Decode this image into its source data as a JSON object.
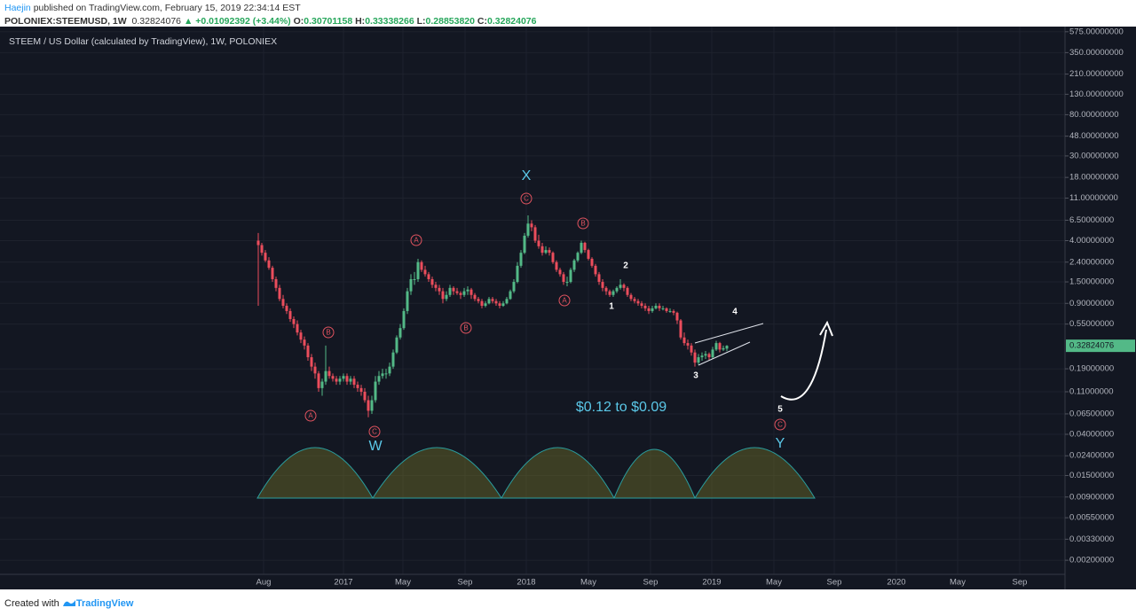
{
  "header": {
    "author": "Haejin",
    "published": "published on TradingView.com, February 15, 2019 22:34:14 EST",
    "symbol": "POLONIEX:STEEMUSD, 1W",
    "price": "0.32824076",
    "change": "▲ +0.01092392 (+3.44%)",
    "ohlc": [
      {
        "key": "O:",
        "val": "0.30701158"
      },
      {
        "key": "H:",
        "val": "0.33338266"
      },
      {
        "key": "L:",
        "val": "0.28853820"
      },
      {
        "key": "C:",
        "val": "0.32824076"
      }
    ]
  },
  "footer": {
    "created": "Created with",
    "brand": "TradingView"
  },
  "chart_data": {
    "type": "candlestick",
    "title": "STEEM / US Dollar (calculated by TradingView), 1W, POLONIEX",
    "up_color": "#53b987",
    "down_color": "#eb4d5c",
    "log_scale": true,
    "grid": true,
    "ylim": [
      0.001,
      650
    ],
    "xlim": [
      -72.75,
      227.25
    ],
    "yticks": [
      {
        "value": 575,
        "label": "575.00000000"
      },
      {
        "value": 350,
        "label": "350.00000000"
      },
      {
        "value": 210,
        "label": "210.00000000"
      },
      {
        "value": 130,
        "label": "130.00000000"
      },
      {
        "value": 80,
        "label": "80.00000000"
      },
      {
        "value": 48,
        "label": "48.00000000"
      },
      {
        "value": 30,
        "label": "30.00000000"
      },
      {
        "value": 18,
        "label": "18.00000000"
      },
      {
        "value": 11,
        "label": "11.00000000"
      },
      {
        "value": 6.5,
        "label": "6.50000000"
      },
      {
        "value": 4,
        "label": "4.00000000"
      },
      {
        "value": 2.4,
        "label": "2.40000000"
      },
      {
        "value": 1.5,
        "label": "1.50000000"
      },
      {
        "value": 0.9,
        "label": "0.90000000"
      },
      {
        "value": 0.55,
        "label": "0.55000000"
      },
      {
        "value": 0.19,
        "label": "0.19000000"
      },
      {
        "value": 0.11,
        "label": "0.11000000"
      },
      {
        "value": 0.065,
        "label": "0.06500000"
      },
      {
        "value": 0.04,
        "label": "0.04000000"
      },
      {
        "value": 0.024,
        "label": "0.02400000"
      },
      {
        "value": 0.015,
        "label": "0.01500000"
      },
      {
        "value": 0.009,
        "label": "0.00900000"
      },
      {
        "value": 0.0055,
        "label": "0.00550000"
      },
      {
        "value": 0.0033,
        "label": "0.00330000"
      },
      {
        "value": 0.002,
        "label": "0.00200000"
      }
    ],
    "xticks": [
      {
        "value": 1.5,
        "label": "Aug"
      },
      {
        "value": 24,
        "label": "2017"
      },
      {
        "value": 40.75,
        "label": "May"
      },
      {
        "value": 58.25,
        "label": "Sep"
      },
      {
        "value": 75.5,
        "label": "2018"
      },
      {
        "value": 93,
        "label": "May"
      },
      {
        "value": 110.5,
        "label": "Sep"
      },
      {
        "value": 127.75,
        "label": "2019"
      },
      {
        "value": 145.25,
        "label": "May"
      },
      {
        "value": 162.25,
        "label": "Sep"
      },
      {
        "value": 179.75,
        "label": "2020"
      },
      {
        "value": 197,
        "label": "May"
      },
      {
        "value": 214.5,
        "label": "Sep"
      }
    ],
    "last_price": {
      "value": 0.32824076,
      "label": "0.32824076"
    },
    "candles": [
      [
        4.0,
        4.8,
        0.85,
        3.6
      ],
      [
        3.6,
        3.8,
        2.8,
        3.0
      ],
      [
        3.0,
        3.2,
        2.4,
        2.5
      ],
      [
        2.5,
        2.7,
        2.0,
        2.1
      ],
      [
        2.1,
        2.2,
        1.5,
        1.6
      ],
      [
        1.6,
        1.7,
        1.2,
        1.3
      ],
      [
        1.3,
        1.4,
        0.95,
        1.0
      ],
      [
        1.0,
        1.1,
        0.8,
        0.85
      ],
      [
        0.85,
        0.9,
        0.7,
        0.75
      ],
      [
        0.75,
        0.8,
        0.58,
        0.62
      ],
      [
        0.62,
        0.66,
        0.5,
        0.55
      ],
      [
        0.55,
        0.6,
        0.42,
        0.45
      ],
      [
        0.45,
        0.48,
        0.35,
        0.38
      ],
      [
        0.38,
        0.41,
        0.3,
        0.33
      ],
      [
        0.33,
        0.35,
        0.23,
        0.25
      ],
      [
        0.25,
        0.27,
        0.18,
        0.2
      ],
      [
        0.2,
        0.22,
        0.15,
        0.17
      ],
      [
        0.17,
        0.18,
        0.11,
        0.12
      ],
      [
        0.12,
        0.15,
        0.1,
        0.14
      ],
      [
        0.14,
        0.33,
        0.13,
        0.18
      ],
      [
        0.18,
        0.2,
        0.15,
        0.16
      ],
      [
        0.16,
        0.17,
        0.14,
        0.15
      ],
      [
        0.15,
        0.16,
        0.13,
        0.14
      ],
      [
        0.14,
        0.16,
        0.13,
        0.15
      ],
      [
        0.15,
        0.17,
        0.14,
        0.16
      ],
      [
        0.16,
        0.17,
        0.13,
        0.14
      ],
      [
        0.14,
        0.16,
        0.13,
        0.15
      ],
      [
        0.15,
        0.16,
        0.12,
        0.13
      ],
      [
        0.13,
        0.14,
        0.11,
        0.12
      ],
      [
        0.12,
        0.13,
        0.1,
        0.11
      ],
      [
        0.11,
        0.12,
        0.085,
        0.09
      ],
      [
        0.09,
        0.1,
        0.06,
        0.07
      ],
      [
        0.07,
        0.1,
        0.065,
        0.09
      ],
      [
        0.09,
        0.16,
        0.085,
        0.14
      ],
      [
        0.14,
        0.18,
        0.13,
        0.16
      ],
      [
        0.16,
        0.19,
        0.15,
        0.17
      ],
      [
        0.17,
        0.19,
        0.15,
        0.17
      ],
      [
        0.17,
        0.22,
        0.16,
        0.2
      ],
      [
        0.2,
        0.3,
        0.19,
        0.28
      ],
      [
        0.28,
        0.42,
        0.27,
        0.4
      ],
      [
        0.4,
        0.55,
        0.38,
        0.5
      ],
      [
        0.5,
        0.8,
        0.48,
        0.75
      ],
      [
        0.75,
        1.3,
        0.7,
        1.2
      ],
      [
        1.2,
        1.8,
        1.1,
        1.6
      ],
      [
        1.6,
        1.9,
        1.4,
        1.6
      ],
      [
        1.6,
        2.6,
        1.5,
        2.4
      ],
      [
        2.4,
        2.5,
        1.9,
        2.0
      ],
      [
        2.0,
        2.2,
        1.7,
        1.8
      ],
      [
        1.8,
        1.9,
        1.5,
        1.6
      ],
      [
        1.6,
        1.7,
        1.3,
        1.4
      ],
      [
        1.4,
        1.5,
        1.2,
        1.3
      ],
      [
        1.3,
        1.4,
        1.1,
        1.2
      ],
      [
        1.2,
        1.3,
        0.9,
        1.0
      ],
      [
        1.0,
        1.2,
        0.95,
        1.1
      ],
      [
        1.1,
        1.4,
        1.05,
        1.3
      ],
      [
        1.3,
        1.35,
        1.1,
        1.2
      ],
      [
        1.2,
        1.3,
        1.1,
        1.15
      ],
      [
        1.15,
        1.2,
        1.0,
        1.1
      ],
      [
        1.1,
        1.3,
        1.05,
        1.2
      ],
      [
        1.2,
        1.35,
        1.1,
        1.25
      ],
      [
        1.25,
        1.3,
        1.0,
        1.1
      ],
      [
        1.1,
        1.15,
        0.95,
        1.0
      ],
      [
        1.0,
        1.05,
        0.9,
        0.95
      ],
      [
        0.95,
        1.0,
        0.8,
        0.85
      ],
      [
        0.85,
        0.95,
        0.82,
        0.9
      ],
      [
        0.9,
        1.05,
        0.88,
        1.0
      ],
      [
        1.0,
        1.05,
        0.9,
        0.95
      ],
      [
        0.95,
        1.0,
        0.85,
        0.9
      ],
      [
        0.9,
        0.95,
        0.8,
        0.85
      ],
      [
        0.85,
        0.95,
        0.83,
        0.9
      ],
      [
        0.9,
        1.05,
        0.88,
        1.0
      ],
      [
        1.0,
        1.25,
        0.98,
        1.2
      ],
      [
        1.2,
        1.6,
        1.15,
        1.5
      ],
      [
        1.5,
        2.4,
        1.45,
        2.2
      ],
      [
        2.2,
        3.2,
        2.1,
        3.0
      ],
      [
        3.0,
        4.8,
        2.9,
        4.5
      ],
      [
        4.5,
        7.3,
        4.3,
        6.0
      ],
      [
        6.0,
        6.5,
        5.0,
        5.5
      ],
      [
        5.5,
        5.8,
        3.8,
        4.0
      ],
      [
        4.0,
        4.6,
        3.3,
        3.5
      ],
      [
        3.5,
        3.8,
        2.8,
        3.0
      ],
      [
        3.0,
        3.5,
        2.9,
        3.2
      ],
      [
        3.2,
        3.4,
        2.8,
        3.0
      ],
      [
        3.0,
        3.1,
        2.3,
        2.4
      ],
      [
        2.4,
        2.5,
        1.9,
        2.0
      ],
      [
        2.0,
        2.1,
        1.7,
        1.8
      ],
      [
        1.8,
        1.9,
        1.4,
        1.5
      ],
      [
        1.5,
        1.7,
        1.35,
        1.5
      ],
      [
        1.5,
        2.1,
        1.45,
        2.0
      ],
      [
        2.0,
        2.6,
        1.9,
        2.5
      ],
      [
        2.5,
        3.1,
        2.4,
        3.0
      ],
      [
        3.0,
        4.0,
        2.9,
        3.8
      ],
      [
        3.8,
        3.9,
        3.0,
        3.2
      ],
      [
        3.2,
        3.3,
        2.5,
        2.6
      ],
      [
        2.6,
        2.7,
        2.1,
        2.2
      ],
      [
        2.2,
        2.3,
        1.7,
        1.8
      ],
      [
        1.8,
        1.9,
        1.4,
        1.5
      ],
      [
        1.5,
        1.6,
        1.2,
        1.3
      ],
      [
        1.3,
        1.35,
        1.1,
        1.2
      ],
      [
        1.2,
        1.25,
        1.05,
        1.1
      ],
      [
        1.1,
        1.25,
        1.05,
        1.2
      ],
      [
        1.2,
        1.35,
        1.15,
        1.3
      ],
      [
        1.3,
        1.6,
        1.25,
        1.4
      ],
      [
        1.4,
        1.45,
        1.2,
        1.3
      ],
      [
        1.3,
        1.35,
        1.05,
        1.1
      ],
      [
        1.1,
        1.15,
        0.95,
        1.0
      ],
      [
        1.0,
        1.05,
        0.9,
        0.95
      ],
      [
        0.95,
        1.0,
        0.85,
        0.9
      ],
      [
        0.9,
        0.95,
        0.8,
        0.85
      ],
      [
        0.85,
        0.9,
        0.75,
        0.8
      ],
      [
        0.8,
        0.85,
        0.7,
        0.75
      ],
      [
        0.75,
        0.85,
        0.72,
        0.8
      ],
      [
        0.8,
        0.9,
        0.78,
        0.85
      ],
      [
        0.85,
        0.9,
        0.75,
        0.8
      ],
      [
        0.8,
        0.85,
        0.76,
        0.8
      ],
      [
        0.8,
        0.82,
        0.72,
        0.75
      ],
      [
        0.75,
        0.8,
        0.72,
        0.75
      ],
      [
        0.75,
        0.78,
        0.68,
        0.72
      ],
      [
        0.72,
        0.74,
        0.55,
        0.6
      ],
      [
        0.6,
        0.62,
        0.38,
        0.4
      ],
      [
        0.4,
        0.45,
        0.33,
        0.35
      ],
      [
        0.35,
        0.38,
        0.3,
        0.33
      ],
      [
        0.33,
        0.35,
        0.26,
        0.28
      ],
      [
        0.28,
        0.3,
        0.2,
        0.22
      ],
      [
        0.22,
        0.27,
        0.21,
        0.25
      ],
      [
        0.25,
        0.28,
        0.23,
        0.26
      ],
      [
        0.26,
        0.29,
        0.24,
        0.27
      ],
      [
        0.27,
        0.28,
        0.23,
        0.25
      ],
      [
        0.25,
        0.32,
        0.24,
        0.3
      ],
      [
        0.3,
        0.37,
        0.29,
        0.35
      ],
      [
        0.35,
        0.36,
        0.28,
        0.3
      ],
      [
        0.3,
        0.33,
        0.29,
        0.31
      ],
      [
        0.30701158,
        0.33338266,
        0.2885382,
        0.32824076
      ]
    ],
    "annotations": [
      "X",
      "W",
      "Y",
      "A",
      "B",
      "C",
      "1",
      "2",
      "3",
      "4",
      "5",
      "$0.12 to $0.09"
    ]
  }
}
